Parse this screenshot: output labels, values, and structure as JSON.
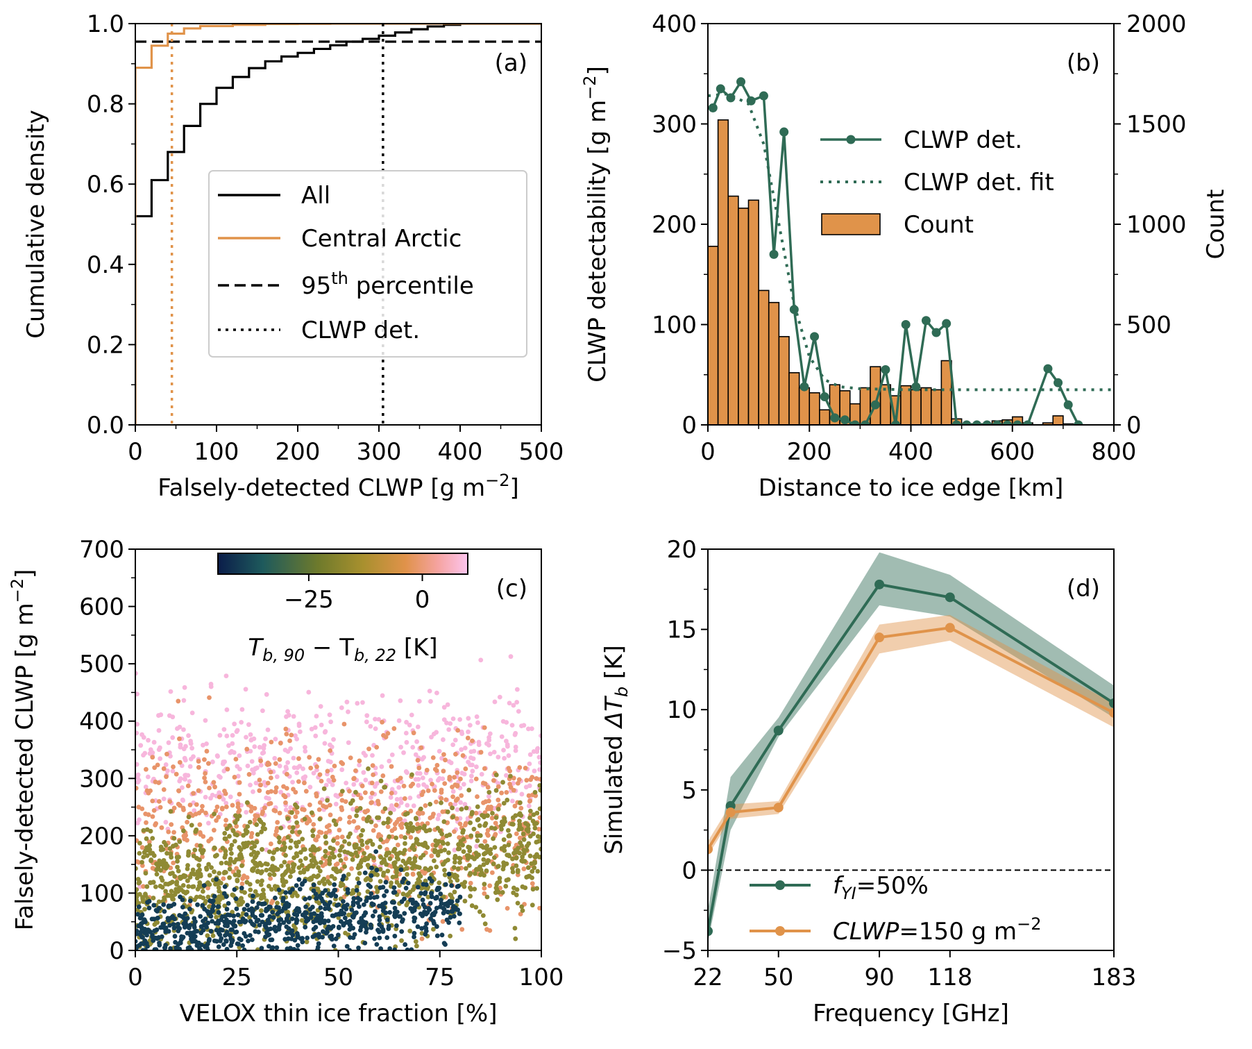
{
  "chart_data": [
    {
      "panel": "(a)",
      "type": "line",
      "xlabel": "Falsely-detected CLWP [g m⁻²]",
      "ylabel": "Cumulative density",
      "xlim": [
        0,
        500
      ],
      "ylim": [
        0,
        1.0
      ],
      "xticks": [
        "0",
        "100",
        "200",
        "300",
        "400",
        "500"
      ],
      "yticks": [
        "0.0",
        "0.2",
        "0.4",
        "0.6",
        "0.8",
        "1.0"
      ],
      "legend_placement": "center-right",
      "series": [
        {
          "name": "All",
          "style": "step",
          "color": "#000000",
          "x": [
            0,
            20,
            40,
            60,
            80,
            100,
            120,
            140,
            160,
            180,
            200,
            220,
            240,
            260,
            280,
            300,
            320,
            340,
            360,
            380,
            400
          ],
          "y": [
            0.52,
            0.61,
            0.68,
            0.745,
            0.8,
            0.84,
            0.867,
            0.889,
            0.906,
            0.918,
            0.927,
            0.937,
            0.946,
            0.955,
            0.962,
            0.97,
            0.978,
            0.986,
            0.993,
            0.997,
            1.0
          ]
        },
        {
          "name": "Central Arctic",
          "style": "step",
          "color": "#E0934A",
          "x": [
            0,
            20,
            40,
            60,
            80,
            120,
            160,
            200,
            240
          ],
          "y": [
            0.89,
            0.945,
            0.975,
            0.988,
            0.994,
            0.997,
            0.999,
            0.9995,
            1.0
          ]
        },
        {
          "name": "95th percentile",
          "style": "dashed",
          "color": "#000000",
          "y": 0.955
        },
        {
          "name": "CLWP det.",
          "style": "dotted",
          "color": "#000000",
          "x": 305
        },
        {
          "name": "",
          "style": "dotted",
          "color": "#E0934A",
          "x": 45
        }
      ],
      "legend": [
        "All",
        "Central Arctic",
        "95",
        "th",
        " percentile",
        "CLWP det."
      ]
    },
    {
      "panel": "(b)",
      "type": "bar",
      "xlabel": "Distance to ice edge [km]",
      "ylabel": "CLWP detectability [g m⁻²]",
      "ylabel_right": "Count",
      "xlim": [
        0,
        800
      ],
      "ylim": [
        0,
        400
      ],
      "ylim_right": [
        0,
        2000
      ],
      "xticks": [
        "0",
        "200",
        "400",
        "600",
        "800"
      ],
      "yticks": [
        "0",
        "100",
        "200",
        "300",
        "400"
      ],
      "yticks_right": [
        "0",
        "500",
        "1000",
        "1500",
        "2000"
      ],
      "legend_placement": "upper-right",
      "bin_width": 20,
      "count_bins_left_edge": [
        0,
        20,
        40,
        60,
        80,
        100,
        120,
        140,
        160,
        180,
        200,
        220,
        240,
        260,
        280,
        300,
        320,
        340,
        360,
        380,
        400,
        420,
        440,
        460,
        480,
        500,
        520,
        540,
        560,
        580,
        600,
        620,
        640,
        660,
        680,
        700
      ],
      "count_values": [
        890,
        1520,
        1140,
        1080,
        1120,
        670,
        610,
        440,
        260,
        185,
        160,
        75,
        200,
        170,
        105,
        185,
        290,
        200,
        145,
        195,
        175,
        185,
        175,
        320,
        30,
        5,
        5,
        5,
        20,
        25,
        40,
        10,
        0,
        10,
        45,
        5
      ],
      "series": [
        {
          "name": "CLWP det.",
          "color": "#2F6B55",
          "style": "line-marker",
          "x": [
            10,
            25,
            45,
            65,
            85,
            110,
            130,
            150,
            170,
            190,
            210,
            230,
            250,
            270,
            290,
            310,
            330,
            350,
            370,
            390,
            410,
            430,
            450,
            470,
            490,
            510,
            530,
            550,
            570,
            590,
            610,
            630,
            670,
            690,
            710,
            730
          ],
          "y": [
            316,
            335,
            326,
            342,
            323,
            328,
            170,
            292,
            115,
            38,
            88,
            28,
            7,
            5,
            0,
            0,
            20,
            55,
            0,
            100,
            38,
            104,
            92,
            101,
            0,
            0,
            0,
            0,
            0,
            0,
            0,
            0,
            56,
            42,
            20,
            0
          ]
        },
        {
          "name": "CLWP det. fit",
          "color": "#2F6B55",
          "style": "dotted",
          "x": [
            0,
            40,
            80,
            110,
            140,
            170,
            200,
            230,
            260,
            300,
            400,
            500,
            600,
            700,
            800
          ],
          "y": [
            328,
            330,
            320,
            280,
            200,
            120,
            68,
            45,
            38,
            36,
            35,
            35,
            35,
            35,
            35
          ]
        },
        {
          "name": "Count",
          "color": "#E0934A",
          "style": "bar"
        }
      ],
      "legend": [
        "CLWP det.",
        "CLWP det. fit",
        "Count"
      ]
    },
    {
      "panel": "(c)",
      "type": "scatter",
      "xlabel": "VELOX thin ice fraction [%]",
      "ylabel": "Falsely-detected CLWP [g m⁻²]",
      "xlim": [
        0,
        100
      ],
      "ylim": [
        0,
        700
      ],
      "xticks": [
        "0",
        "25",
        "50",
        "75",
        "100"
      ],
      "yticks": [
        "0",
        "100",
        "200",
        "300",
        "400",
        "500",
        "600",
        "700"
      ],
      "colorbar": {
        "label": "T",
        "label_sub": "b, 90",
        "label_mid": " − T",
        "label_sub2": "b, 22",
        "label_unit": " [K]",
        "range": [
          -45,
          10
        ],
        "ticks": [
          "−25",
          "0"
        ],
        "tick_values": [
          -25,
          0
        ],
        "colors": [
          "#0B1D4A",
          "#1E5A5C",
          "#6E7A2C",
          "#A8902E",
          "#E0924A",
          "#F5A3A0",
          "#FCC5EE"
        ]
      },
      "density_bands": [
        {
          "color_value": 5,
          "y_center": 320,
          "y_spread": 60,
          "n": 550,
          "color": "#F7B6DC"
        },
        {
          "color_value": -5,
          "y_center": 220,
          "y_spread": 70,
          "n": 700,
          "color": "#E8946A"
        },
        {
          "color_value": -20,
          "y_center": 110,
          "y_spread": 55,
          "n": 1200,
          "color": "#8F8A34"
        },
        {
          "color_value": -35,
          "y_center": 30,
          "y_spread": 30,
          "n": 900,
          "color": "#143D55"
        }
      ]
    },
    {
      "panel": "(d)",
      "type": "line",
      "xlabel": "Frequency [GHz]",
      "ylabel": "Simulated ΔT_b [K]",
      "ylabel_prefix": "Simulated ",
      "ylabel_delta": "ΔT",
      "ylabel_sub": "b",
      "ylabel_unit": " [K]",
      "xlim": [
        22,
        183
      ],
      "ylim": [
        -5,
        20
      ],
      "xticks": [
        "22",
        "50",
        "90",
        "118",
        "183"
      ],
      "xtick_values": [
        22,
        50,
        90,
        118,
        183
      ],
      "yticks": [
        "−5",
        "0",
        "5",
        "10",
        "15",
        "20"
      ],
      "legend_placement": "lower-center",
      "series": [
        {
          "name": "f_YI=50%",
          "color": "#2F6B55",
          "x": [
            22,
            31,
            50,
            90,
            118,
            183
          ],
          "y": [
            -3.8,
            4.0,
            8.7,
            17.8,
            17.0,
            10.4
          ],
          "lower": [
            -4.5,
            2.5,
            8.3,
            16.5,
            15.8,
            9.5
          ],
          "upper": [
            -2.5,
            5.8,
            9.5,
            19.8,
            18.4,
            11.5
          ]
        },
        {
          "name": "CLWP=150 g m⁻²",
          "color": "#E0934A",
          "x": [
            22,
            31,
            50,
            90,
            118,
            183
          ],
          "y": [
            1.3,
            3.6,
            3.9,
            14.5,
            15.1,
            9.8
          ],
          "lower": [
            0.9,
            3.2,
            3.5,
            13.5,
            14.3,
            8.9
          ],
          "upper": [
            1.8,
            4.1,
            4.3,
            15.3,
            15.9,
            10.4
          ]
        }
      ],
      "zero_line": 0,
      "legend": [
        {
          "italic": "f",
          "sub": "YI",
          "rest": "=50%"
        },
        {
          "italic": "CLWP",
          "rest": "=150 g m",
          "sup": "−2"
        }
      ]
    }
  ],
  "panel_labels": [
    "(a)",
    "(b)",
    "(c)",
    "(d)"
  ]
}
